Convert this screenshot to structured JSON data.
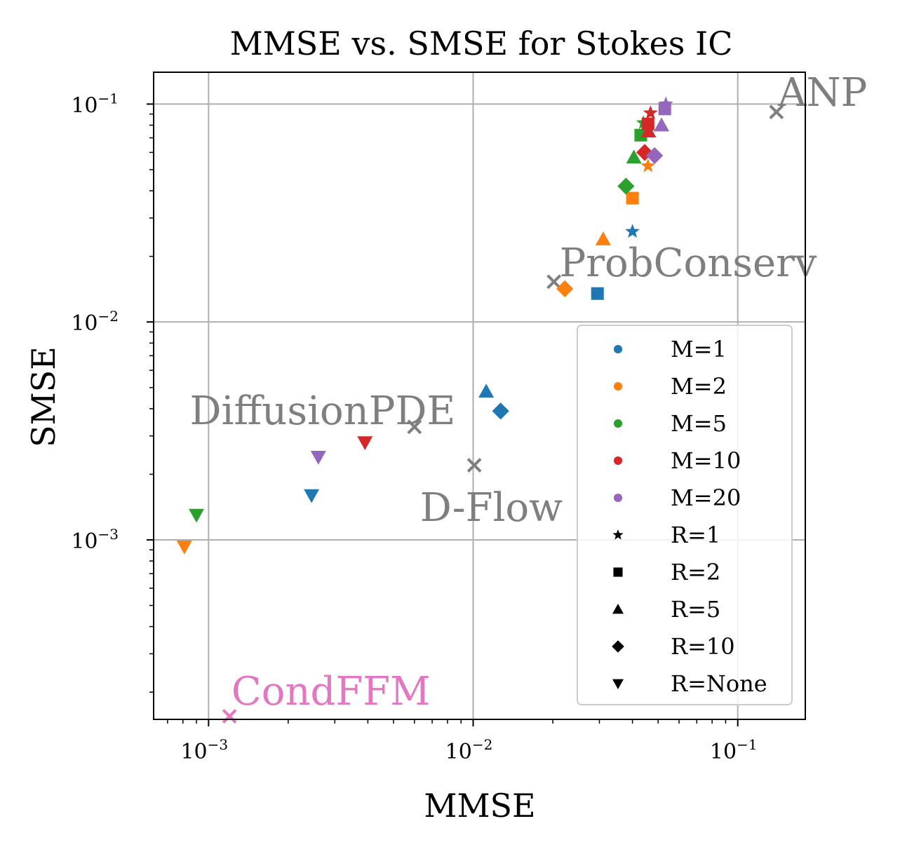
{
  "chart_data": {
    "type": "scatter",
    "title": "MMSE vs. SMSE for Stokes IC",
    "xlabel": "MMSE",
    "ylabel": "SMSE",
    "xscale": "log",
    "yscale": "log",
    "xlim": [
      0.00062,
      0.18
    ],
    "ylim": [
      0.00015,
      0.14
    ],
    "grid": true,
    "x_ticks": [
      {
        "value": 0.001,
        "base": "10",
        "exp": "−3"
      },
      {
        "value": 0.01,
        "base": "10",
        "exp": "−2"
      },
      {
        "value": 0.1,
        "base": "10",
        "exp": "−1"
      }
    ],
    "y_ticks": [
      {
        "value": 0.001,
        "base": "10",
        "exp": "−3"
      },
      {
        "value": 0.01,
        "base": "10",
        "exp": "−2"
      },
      {
        "value": 0.1,
        "base": "10",
        "exp": "−1"
      }
    ],
    "colors": {
      "M=1": "#1f77b4",
      "M=2": "#ff7f0e",
      "M=5": "#2ca02c",
      "M=10": "#d62728",
      "M=20": "#9467bd",
      "baseline": "#7f7f7f",
      "condffm": "#e377c2"
    },
    "series": [
      {
        "name": "M=1, R=1",
        "M": "M=1",
        "marker": "star",
        "x": 0.04,
        "y": 0.026
      },
      {
        "name": "M=1, R=2",
        "M": "M=1",
        "marker": "square",
        "x": 0.0295,
        "y": 0.0135
      },
      {
        "name": "M=1, R=5",
        "M": "M=1",
        "marker": "triangle-up",
        "x": 0.0112,
        "y": 0.0048
      },
      {
        "name": "M=1, R=10",
        "M": "M=1",
        "marker": "diamond",
        "x": 0.0127,
        "y": 0.0039
      },
      {
        "name": "M=1, R=None",
        "M": "M=1",
        "marker": "triangle-down",
        "x": 0.00245,
        "y": 0.0016
      },
      {
        "name": "M=2, R=1",
        "M": "M=2",
        "marker": "star",
        "x": 0.0458,
        "y": 0.052
      },
      {
        "name": "M=2, R=2",
        "M": "M=2",
        "marker": "square",
        "x": 0.04,
        "y": 0.037
      },
      {
        "name": "M=2, R=5",
        "M": "M=2",
        "marker": "triangle-up",
        "x": 0.031,
        "y": 0.024
      },
      {
        "name": "M=2, R=10",
        "M": "M=2",
        "marker": "diamond",
        "x": 0.0222,
        "y": 0.0142
      },
      {
        "name": "M=2, R=None",
        "M": "M=2",
        "marker": "triangle-down",
        "x": 0.00081,
        "y": 0.00093
      },
      {
        "name": "M=5, R=1",
        "M": "M=5",
        "marker": "star",
        "x": 0.044,
        "y": 0.082
      },
      {
        "name": "M=5, R=2",
        "M": "M=5",
        "marker": "square",
        "x": 0.043,
        "y": 0.072
      },
      {
        "name": "M=5, R=5",
        "M": "M=5",
        "marker": "triangle-up",
        "x": 0.0405,
        "y": 0.057
      },
      {
        "name": "M=5, R=10",
        "M": "M=5",
        "marker": "diamond",
        "x": 0.0378,
        "y": 0.042
      },
      {
        "name": "M=5, R=None",
        "M": "M=5",
        "marker": "triangle-down",
        "x": 0.0009,
        "y": 0.0013
      },
      {
        "name": "M=10, R=1",
        "M": "M=10",
        "marker": "star",
        "x": 0.0468,
        "y": 0.091
      },
      {
        "name": "M=10, R=2",
        "M": "M=10",
        "marker": "square",
        "x": 0.0458,
        "y": 0.081
      },
      {
        "name": "M=10, R=5",
        "M": "M=10",
        "marker": "triangle-up",
        "x": 0.046,
        "y": 0.075
      },
      {
        "name": "M=10, R=10",
        "M": "M=10",
        "marker": "diamond",
        "x": 0.0445,
        "y": 0.06
      },
      {
        "name": "M=10, R=None",
        "M": "M=10",
        "marker": "triangle-down",
        "x": 0.0039,
        "y": 0.0028
      },
      {
        "name": "M=20, R=1",
        "M": "M=20",
        "marker": "star",
        "x": 0.0535,
        "y": 0.1
      },
      {
        "name": "M=20, R=2",
        "M": "M=20",
        "marker": "square",
        "x": 0.053,
        "y": 0.095
      },
      {
        "name": "M=20, R=5",
        "M": "M=20",
        "marker": "triangle-up",
        "x": 0.0515,
        "y": 0.08
      },
      {
        "name": "M=20, R=10",
        "M": "M=20",
        "marker": "diamond",
        "x": 0.0485,
        "y": 0.058
      },
      {
        "name": "M=20, R=None",
        "M": "M=20",
        "marker": "triangle-down",
        "x": 0.0026,
        "y": 0.0024
      }
    ],
    "baselines": [
      {
        "name": "ANP",
        "marker": "x",
        "color": "baseline",
        "x": 0.14,
        "y": 0.092
      },
      {
        "name": "ProbConserv",
        "marker": "x",
        "color": "baseline",
        "x": 0.0202,
        "y": 0.0153
      },
      {
        "name": "DiffusionPDE",
        "marker": "x",
        "color": "baseline",
        "x": 0.006,
        "y": 0.0033
      },
      {
        "name": "D-Flow",
        "marker": "x",
        "color": "baseline",
        "x": 0.0101,
        "y": 0.0022
      },
      {
        "name": "CondFFM",
        "marker": "x",
        "color": "condffm",
        "x": 0.0012,
        "y": 0.000155
      }
    ],
    "annotations": [
      {
        "text": "ANP",
        "x": 0.142,
        "y": 0.098,
        "color": "baseline"
      },
      {
        "text": "ProbConserv",
        "x": 0.0212,
        "y": 0.0162,
        "color": "baseline"
      },
      {
        "text": "DiffusionPDE",
        "x": 0.00085,
        "y": 0.0034,
        "color": "baseline"
      },
      {
        "text": "D-Flow",
        "x": 0.0063,
        "y": 0.00122,
        "color": "baseline"
      },
      {
        "text": "CondFFM",
        "x": 0.00122,
        "y": 0.000175,
        "color": "condffm"
      }
    ],
    "legend": {
      "position": "lower-right",
      "entries": [
        {
          "label": "M=1",
          "marker": "circle",
          "color": "#1f77b4"
        },
        {
          "label": "M=2",
          "marker": "circle",
          "color": "#ff7f0e"
        },
        {
          "label": "M=5",
          "marker": "circle",
          "color": "#2ca02c"
        },
        {
          "label": "M=10",
          "marker": "circle",
          "color": "#d62728"
        },
        {
          "label": "M=20",
          "marker": "circle",
          "color": "#9467bd"
        },
        {
          "label": "R=1",
          "marker": "star",
          "color": "#000000"
        },
        {
          "label": "R=2",
          "marker": "square",
          "color": "#000000"
        },
        {
          "label": "R=5",
          "marker": "triangle-up",
          "color": "#000000"
        },
        {
          "label": "R=10",
          "marker": "diamond",
          "color": "#000000"
        },
        {
          "label": "R=None",
          "marker": "triangle-down",
          "color": "#000000"
        }
      ]
    }
  }
}
